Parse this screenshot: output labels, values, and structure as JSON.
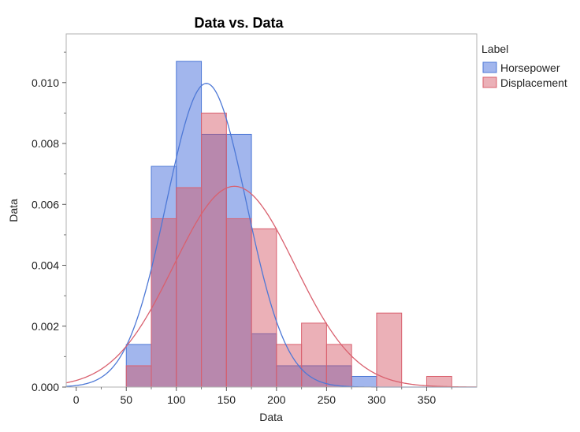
{
  "chart_data": {
    "type": "histogram",
    "title": "Data vs. Data",
    "xlabel": "Data",
    "ylabel": "Data",
    "xlim": [
      -10,
      400
    ],
    "ylim": [
      0,
      0.0116
    ],
    "x_ticks": [
      0,
      50,
      100,
      150,
      200,
      250,
      300,
      350
    ],
    "y_ticks": [
      0.0,
      0.002,
      0.004,
      0.006,
      0.008,
      0.01
    ],
    "y_tick_labels": [
      "0.000",
      "0.002",
      "0.004",
      "0.006",
      "0.008",
      "0.010"
    ],
    "grid": false,
    "legend": {
      "title": "Label",
      "position": "right",
      "entries": [
        {
          "name": "Horsepower",
          "color": "#4d78d6"
        },
        {
          "name": "Displacement",
          "color": "#d9606e"
        }
      ]
    },
    "bin_edges": [
      50,
      75,
      100,
      125,
      150,
      175,
      200,
      225,
      250,
      275,
      300,
      325,
      350,
      375
    ],
    "series": [
      {
        "name": "Horsepower",
        "color": "#4d78d6",
        "fill": "rgba(70,110,220,0.5)",
        "values": [
          0.0014,
          0.00725,
          0.0107,
          0.0083,
          0.0083,
          0.00175,
          0.0007,
          0.0007,
          0.0007,
          0.00035,
          0,
          0,
          0
        ],
        "normal_fit": {
          "mean": 130,
          "sd": 40
        }
      },
      {
        "name": "Displacement",
        "color": "#d9606e",
        "fill": "rgba(210,80,95,0.45)",
        "values": [
          0.0007,
          0.00553,
          0.00655,
          0.009,
          0.00553,
          0.0052,
          0.0014,
          0.0021,
          0.0014,
          0,
          0.00243,
          0,
          0.00035
        ],
        "normal_fit": {
          "mean": 158,
          "sd": 60.5
        }
      }
    ]
  }
}
